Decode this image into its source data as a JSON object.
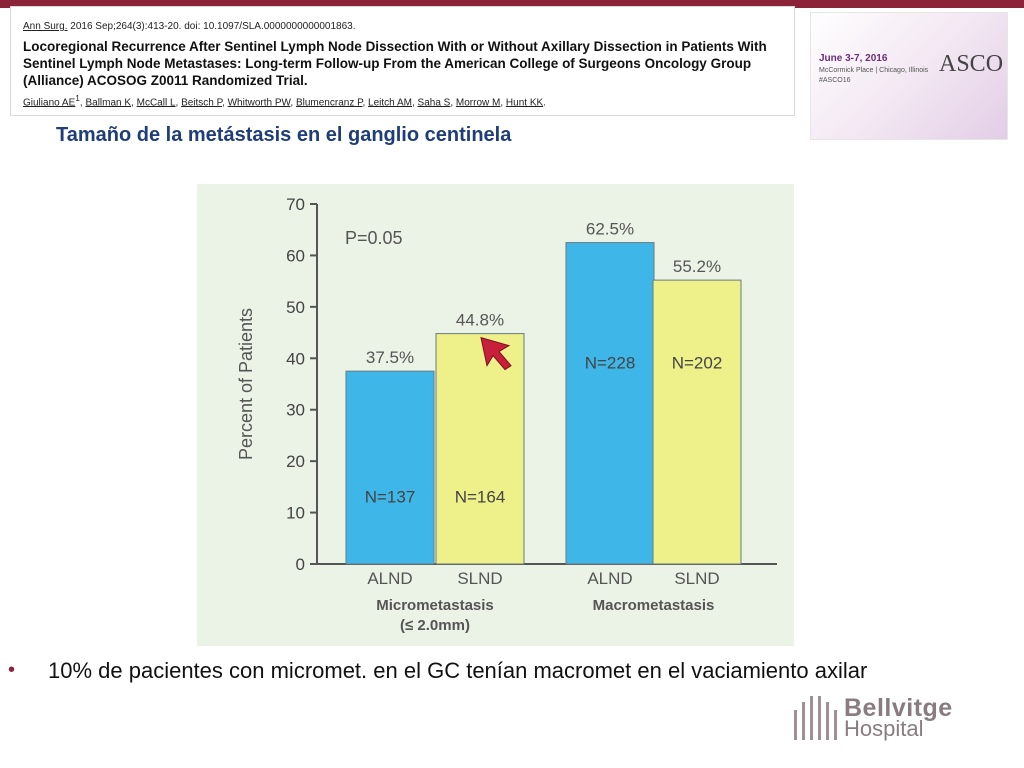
{
  "citation": {
    "journal": "Ann Surg.",
    "reference": " 2016 Sep;264(3):413-20. doi: 10.1097/SLA.0000000000001863.",
    "title": "Locoregional Recurrence After Sentinel Lymph Node Dissection With or Without Axillary Dissection in Patients With Sentinel Lymph Node Metastases: Long-term Follow-up From the American College of Surgeons Oncology Group (Alliance) ACOSOG Z0011 Randomized Trial.",
    "authors_list": [
      "Giuliano AE",
      "Ballman K",
      "McCall L",
      "Beitsch P",
      "Whitworth PW",
      "Blumencranz P",
      "Leitch AM",
      "Saha S",
      "Morrow M",
      "Hunt KK"
    ],
    "first_author_marker": "1"
  },
  "asco": {
    "dates": "June 3-7, 2016",
    "place": "McCormick Place | Chicago, Illinois",
    "tag": "#ASCO16",
    "logo": "ASCO"
  },
  "slide": {
    "title": "Tamaño de la metástasis en el ganglio centinela",
    "bullet": "10% de pacientes con micromet. en el GC tenían macromet en el vaciamiento axilar"
  },
  "logo": {
    "name": "Bellvitge",
    "sub": "Hospital"
  },
  "colors": {
    "accent": "#8b2439",
    "title": "#1f3d7a",
    "alnd_bar": "#3fb6e8",
    "slnd_bar": "#eef08a",
    "photo_bg": "#eaf3e6"
  },
  "chart_data": {
    "type": "bar",
    "ylabel": "Percent of Patients",
    "ylim": [
      0,
      70
    ],
    "yticks": [
      0,
      10,
      20,
      30,
      40,
      50,
      60,
      70
    ],
    "annotation": "P=0.05",
    "groups": [
      {
        "label": "Micrometastasis",
        "sublabel": "(≤ 2.0mm)"
      },
      {
        "label": "Macrometastasis",
        "sublabel": ""
      }
    ],
    "bars": [
      {
        "group": 0,
        "category": "ALND",
        "value": 37.5,
        "value_label": "37.5%",
        "n_label": "N=137",
        "color": "#3fb6e8"
      },
      {
        "group": 0,
        "category": "SLND",
        "value": 44.8,
        "value_label": "44.8%",
        "n_label": "N=164",
        "color": "#eef08a"
      },
      {
        "group": 1,
        "category": "ALND",
        "value": 62.5,
        "value_label": "62.5%",
        "n_label": "N=228",
        "color": "#3fb6e8"
      },
      {
        "group": 1,
        "category": "SLND",
        "value": 55.2,
        "value_label": "55.2%",
        "n_label": "N=202",
        "color": "#eef08a"
      }
    ]
  }
}
